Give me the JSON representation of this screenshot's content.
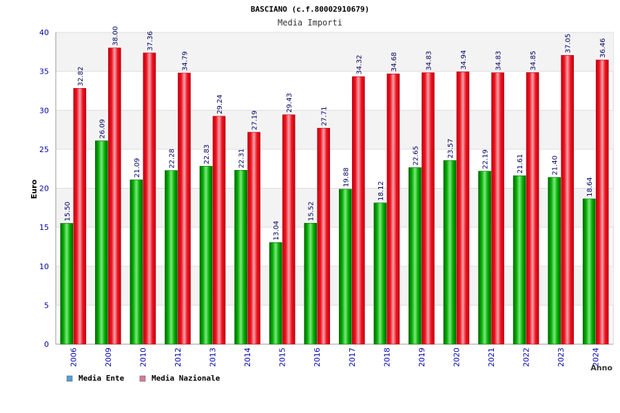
{
  "chart_data": {
    "type": "bar",
    "title": "BASCIANO (c.f.80002910679)",
    "subtitle": "Media Importi",
    "xlabel": "Anno",
    "ylabel": "Euro",
    "ylim": [
      0,
      40
    ],
    "yticks": [
      0,
      5,
      10,
      15,
      20,
      25,
      30,
      35,
      40
    ],
    "grid": true,
    "legend_position": "bottom-left",
    "categories": [
      "2006",
      "2009",
      "2010",
      "2012",
      "2013",
      "2014",
      "2015",
      "2016",
      "2017",
      "2018",
      "2019",
      "2020",
      "2021",
      "2022",
      "2023",
      "2024"
    ],
    "series": [
      {
        "name": "Media Ente",
        "color": "#00b000",
        "legend_color": "#5b9bd5",
        "values": [
          15.5,
          26.09,
          21.09,
          22.28,
          22.83,
          22.31,
          13.04,
          15.52,
          19.88,
          18.12,
          22.65,
          23.57,
          22.19,
          21.61,
          21.4,
          18.64
        ],
        "labels": [
          "15.50",
          "26.09",
          "21.09",
          "22.28",
          "22.83",
          "22.31",
          "13.04",
          "15.52",
          "19.88",
          "18.12",
          "22.65",
          "23.57",
          "22.19",
          "21.61",
          "21.40",
          "18.64"
        ]
      },
      {
        "name": "Media Nazionale",
        "color": "#e8101c",
        "legend_color": "#d67a9b",
        "values": [
          32.82,
          38.0,
          37.36,
          34.79,
          29.24,
          27.19,
          29.43,
          27.71,
          34.32,
          34.68,
          34.83,
          34.94,
          34.83,
          34.85,
          37.05,
          36.46
        ],
        "labels": [
          "32.82",
          "38.00",
          "37.36",
          "34.79",
          "29.24",
          "27.19",
          "29.43",
          "27.71",
          "34.32",
          "34.68",
          "34.83",
          "34.94",
          "34.83",
          "34.85",
          "37.05",
          "36.46"
        ]
      }
    ]
  }
}
